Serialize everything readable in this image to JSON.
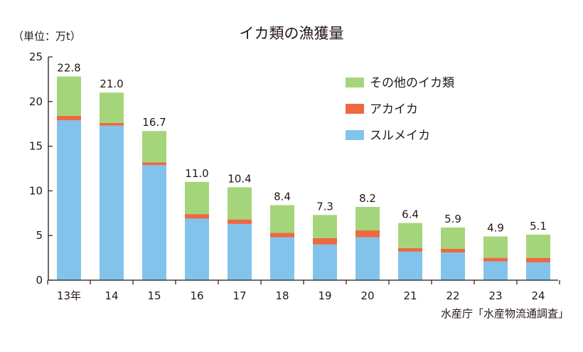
{
  "chart_data": {
    "type": "bar",
    "stacked": true,
    "title": "イカ類の漁獲量",
    "unit_label": "（単位：万t）",
    "source": "水産庁「水産物流通調査」",
    "categories": [
      "13年",
      "14",
      "15",
      "16",
      "17",
      "18",
      "19",
      "20",
      "21",
      "22",
      "23",
      "24"
    ],
    "series": [
      {
        "name": "スルメイカ",
        "color": "#82c3ec",
        "values": [
          17.9,
          17.3,
          12.9,
          6.9,
          6.3,
          4.8,
          4.0,
          4.8,
          3.2,
          3.1,
          2.1,
          2.0
        ]
      },
      {
        "name": "アカイカ",
        "color": "#ec6941",
        "values": [
          0.5,
          0.3,
          0.3,
          0.5,
          0.5,
          0.5,
          0.7,
          0.8,
          0.4,
          0.4,
          0.4,
          0.5
        ]
      },
      {
        "name": "その他のイカ類",
        "color": "#a5d57a",
        "values": [
          4.4,
          3.4,
          3.5,
          3.6,
          3.6,
          3.1,
          2.6,
          2.6,
          2.8,
          2.4,
          2.4,
          2.6
        ]
      }
    ],
    "totals": [
      "22.8",
      "21.0",
      "16.7",
      "11.0",
      "10.4",
      "8.4",
      "7.3",
      "8.2",
      "6.4",
      "5.9",
      "4.9",
      "5.1"
    ],
    "ylim": [
      0,
      25
    ],
    "yticks": [
      0,
      5,
      10,
      15,
      20,
      25
    ],
    "legend_order": [
      "その他のイカ類",
      "アカイカ",
      "スルメイカ"
    ],
    "legend_position": "top-right",
    "grid": false
  }
}
